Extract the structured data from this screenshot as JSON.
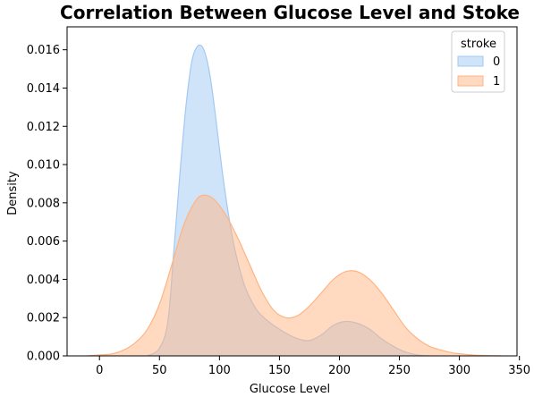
{
  "chart_data": {
    "type": "area",
    "title": "Correlation Between Glucose Level and Stoke",
    "xlabel": "Glucose Level",
    "ylabel": "Density",
    "xlim": [
      -27,
      348
    ],
    "ylim": [
      0,
      0.0172
    ],
    "x_ticks": [
      0,
      50,
      100,
      150,
      200,
      250,
      300,
      350
    ],
    "y_ticks": [
      0.0,
      0.002,
      0.004,
      0.006,
      0.008,
      0.01,
      0.012,
      0.014,
      0.016
    ],
    "x_tick_labels": [
      "0",
      "50",
      "100",
      "150",
      "200",
      "250",
      "300",
      "350"
    ],
    "y_tick_labels": [
      "0.000",
      "0.002",
      "0.004",
      "0.006",
      "0.008",
      "0.010",
      "0.012",
      "0.014",
      "0.016"
    ],
    "grid": false,
    "legend": {
      "title": "stroke",
      "position": "top-right"
    },
    "series": [
      {
        "name": "0",
        "color_fill": "#a1c9f4",
        "color_line": "#a1c9f4",
        "points": [
          [
            40,
            0
          ],
          [
            50,
            0.0004
          ],
          [
            57,
            0.0018
          ],
          [
            62,
            0.0055
          ],
          [
            67,
            0.0095
          ],
          [
            72,
            0.013
          ],
          [
            77,
            0.0154
          ],
          [
            82,
            0.0162
          ],
          [
            87,
            0.016
          ],
          [
            92,
            0.0147
          ],
          [
            97,
            0.0124
          ],
          [
            102,
            0.0098
          ],
          [
            107,
            0.0076
          ],
          [
            112,
            0.0058
          ],
          [
            117,
            0.0045
          ],
          [
            122,
            0.0035
          ],
          [
            130,
            0.0025
          ],
          [
            137,
            0.002
          ],
          [
            145,
            0.0016
          ],
          [
            155,
            0.0012
          ],
          [
            165,
            0.0009
          ],
          [
            175,
            0.0008
          ],
          [
            185,
            0.0011
          ],
          [
            195,
            0.0016
          ],
          [
            205,
            0.0018
          ],
          [
            215,
            0.0017
          ],
          [
            225,
            0.0014
          ],
          [
            235,
            0.0009
          ],
          [
            245,
            0.0005
          ],
          [
            255,
            0.0002
          ],
          [
            265,
            5e-05
          ],
          [
            275,
            0
          ]
        ]
      },
      {
        "name": "1",
        "color_fill": "#ffb482",
        "color_line": "#ffb482",
        "points": [
          [
            -10,
            0
          ],
          [
            0,
            5e-05
          ],
          [
            10,
            0.0001
          ],
          [
            20,
            0.0003
          ],
          [
            30,
            0.0007
          ],
          [
            40,
            0.0014
          ],
          [
            50,
            0.0027
          ],
          [
            60,
            0.0047
          ],
          [
            70,
            0.0068
          ],
          [
            80,
            0.0081
          ],
          [
            87,
            0.0084
          ],
          [
            95,
            0.0082
          ],
          [
            105,
            0.0074
          ],
          [
            115,
            0.0062
          ],
          [
            125,
            0.0048
          ],
          [
            135,
            0.0034
          ],
          [
            145,
            0.0024
          ],
          [
            155,
            0.002
          ],
          [
            165,
            0.0021
          ],
          [
            175,
            0.0026
          ],
          [
            185,
            0.0033
          ],
          [
            195,
            0.004
          ],
          [
            205,
            0.0044
          ],
          [
            215,
            0.0044
          ],
          [
            225,
            0.004
          ],
          [
            235,
            0.0033
          ],
          [
            245,
            0.0024
          ],
          [
            255,
            0.0015
          ],
          [
            265,
            0.0009
          ],
          [
            275,
            0.0005
          ],
          [
            285,
            0.0003
          ],
          [
            295,
            0.00015
          ],
          [
            305,
            8e-05
          ],
          [
            315,
            3e-05
          ],
          [
            335,
            0
          ]
        ]
      }
    ]
  }
}
